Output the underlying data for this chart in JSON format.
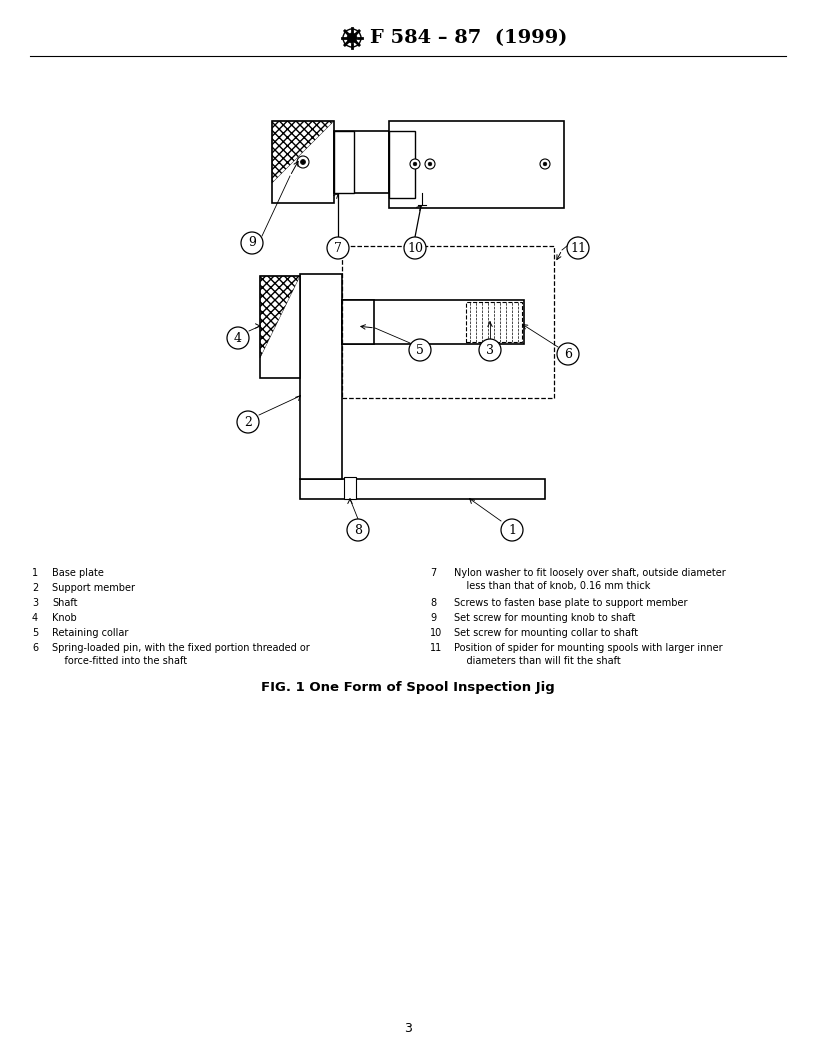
{
  "title": "F 584 – 87  (1999)",
  "fig_caption": "FIG. 1 One Form of Spool Inspection Jig",
  "page_number": "3",
  "legend_left": [
    [
      "1",
      "Base plate",
      ""
    ],
    [
      "2",
      "Support member",
      ""
    ],
    [
      "3",
      "Shaft",
      ""
    ],
    [
      "4",
      "Knob",
      ""
    ],
    [
      "5",
      "Retaining collar",
      ""
    ],
    [
      "6",
      "Spring-loaded pin, with the fixed portion threaded or",
      "    force-fitted into the shaft"
    ]
  ],
  "legend_right": [
    [
      "7",
      "Nylon washer to fit loosely over shaft, outside diameter",
      "    less than that of knob, 0.16 mm thick"
    ],
    [
      "8",
      "Screws to fasten base plate to support member",
      ""
    ],
    [
      "9",
      "Set screw for mounting knob to shaft",
      ""
    ],
    [
      "10",
      "Set screw for mounting collar to shaft",
      ""
    ],
    [
      "11",
      "Position of spider for mounting spools with larger inner",
      "    diameters than will fit the shaft"
    ]
  ],
  "bg_color": "#ffffff",
  "line_color": "#000000",
  "label_fontsize": 7.0,
  "title_fontsize": 14
}
